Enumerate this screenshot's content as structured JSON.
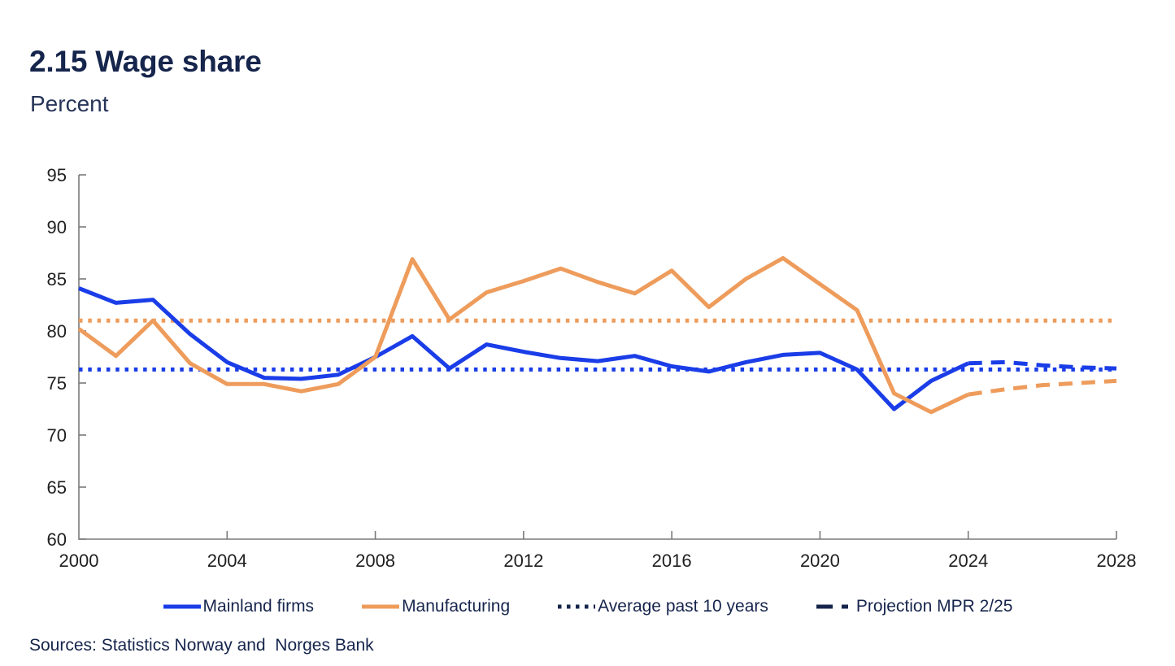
{
  "header": {
    "title": "2.15 Wage share",
    "subtitle": "Percent"
  },
  "sources_text": "Sources: Statistics Norway and  Norges Bank",
  "colors": {
    "blue": "#1A3DE8",
    "orange": "#EE9C5C",
    "navy": "#16254C",
    "axis": "#7a7a7a"
  },
  "chart_data": {
    "type": "line",
    "title": "2.15 Wage share",
    "ylabel": "Percent",
    "xlim": [
      2000,
      2028
    ],
    "ylim": [
      60,
      95
    ],
    "x_ticks": [
      2000,
      2004,
      2008,
      2012,
      2016,
      2020,
      2024,
      2028
    ],
    "y_ticks": [
      60,
      65,
      70,
      75,
      80,
      85,
      90,
      95
    ],
    "grid": false,
    "legend_position": "bottom",
    "series": [
      {
        "id": "average-mainland",
        "name": "Average past 10 years (mainland firms)",
        "style": "dotted",
        "color": "#1A3DE8",
        "x": [
          2000,
          2028
        ],
        "values": [
          76.3,
          76.3
        ]
      },
      {
        "id": "average-manufacturing",
        "name": "Average past 10 years (manufacturing)",
        "style": "dotted",
        "color": "#EE9C5C",
        "x": [
          2000,
          2028
        ],
        "values": [
          81.0,
          81.0
        ]
      },
      {
        "id": "mainland-firms",
        "name": "Mainland firms",
        "style": "solid",
        "color": "#1A3DE8",
        "x": [
          2000,
          2001,
          2002,
          2003,
          2004,
          2005,
          2006,
          2007,
          2008,
          2009,
          2010,
          2011,
          2012,
          2013,
          2014,
          2015,
          2016,
          2017,
          2018,
          2019,
          2020,
          2021,
          2022,
          2023,
          2024
        ],
        "values": [
          84.1,
          82.7,
          83.0,
          79.7,
          77.0,
          75.5,
          75.4,
          75.8,
          77.5,
          79.5,
          76.4,
          78.7,
          78.0,
          77.4,
          77.1,
          77.6,
          76.6,
          76.1,
          77.0,
          77.7,
          77.9,
          76.3,
          72.5,
          75.2,
          76.9
        ]
      },
      {
        "id": "manufacturing",
        "name": "Manufacturing",
        "style": "solid",
        "color": "#EE9C5C",
        "x": [
          2000,
          2001,
          2002,
          2003,
          2004,
          2005,
          2006,
          2007,
          2008,
          2009,
          2010,
          2011,
          2012,
          2013,
          2014,
          2015,
          2016,
          2017,
          2018,
          2019,
          2020,
          2021,
          2022,
          2023,
          2024
        ],
        "values": [
          80.2,
          77.6,
          81.0,
          76.9,
          74.9,
          74.9,
          74.2,
          74.9,
          77.5,
          86.9,
          81.1,
          83.7,
          84.8,
          86.0,
          84.7,
          83.6,
          85.8,
          82.3,
          85.0,
          87.0,
          84.5,
          82.0,
          74.0,
          72.2,
          73.9
        ]
      },
      {
        "id": "projection-manufacturing",
        "name": "Projection MPR 2/25 (manufacturing)",
        "style": "dashed",
        "color": "#EE9C5C",
        "x": [
          2024,
          2025,
          2026,
          2027,
          2028
        ],
        "values": [
          73.9,
          74.4,
          74.8,
          75.0,
          75.2
        ]
      },
      {
        "id": "projection-mainland",
        "name": "Projection MPR 2/25 (mainland firms)",
        "style": "dashed",
        "color": "#1A3DE8",
        "x": [
          2024,
          2025,
          2026,
          2027,
          2028
        ],
        "values": [
          76.9,
          77.0,
          76.7,
          76.5,
          76.4
        ]
      }
    ],
    "legend": [
      {
        "id": "mainland-firms",
        "label": "Mainland firms",
        "swatch": "solid",
        "color": "#1A3DE8"
      },
      {
        "id": "manufacturing",
        "label": "Manufacturing",
        "swatch": "solid",
        "color": "#EE9C5C"
      },
      {
        "id": "average-past-10-years",
        "label": "Average past 10 years",
        "swatch": "dotted",
        "color": "#16254C"
      },
      {
        "id": "projection-mpr-2-25",
        "label": "Projection MPR 2/25",
        "swatch": "dashed",
        "color": "#16254C"
      }
    ]
  }
}
